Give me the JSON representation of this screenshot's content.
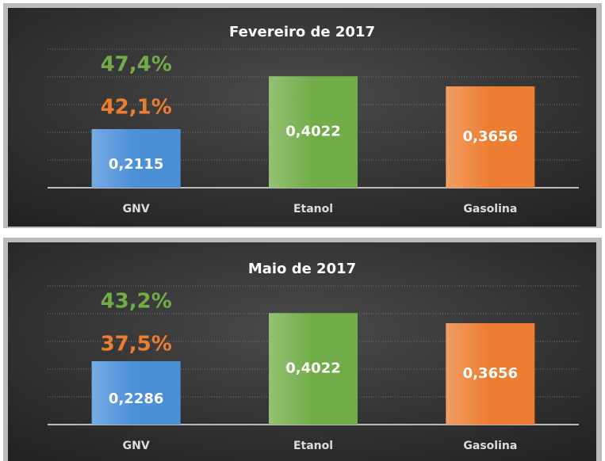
{
  "chart_data": [
    {
      "type": "bar",
      "title": "Fevereiro de 2017",
      "categories": [
        "GNV",
        "Etanol",
        "Gasolina"
      ],
      "values": [
        0.2115,
        0.4022,
        0.3656
      ],
      "value_labels": [
        "0,2115",
        "0,4022",
        "0,3656"
      ],
      "colors": [
        "#4a8fd8",
        "#70ad47",
        "#ed7d31"
      ],
      "ylim": [
        0,
        0.5
      ],
      "yticks": [
        0,
        0.1,
        0.2,
        0.3,
        0.4,
        0.5
      ],
      "grid": true,
      "annotations": [
        {
          "text": "47,4%",
          "color": "#70ad47"
        },
        {
          "text": "42,1%",
          "color": "#ed7d31"
        }
      ]
    },
    {
      "type": "bar",
      "title": "Maio de 2017",
      "categories": [
        "GNV",
        "Etanol",
        "Gasolina"
      ],
      "values": [
        0.2286,
        0.4022,
        0.3656
      ],
      "value_labels": [
        "0,2286",
        "0,4022",
        "0,3656"
      ],
      "colors": [
        "#4a8fd8",
        "#70ad47",
        "#ed7d31"
      ],
      "ylim": [
        0,
        0.5
      ],
      "yticks": [
        0,
        0.1,
        0.2,
        0.3,
        0.4,
        0.5
      ],
      "grid": true,
      "annotations": [
        {
          "text": "43,2%",
          "color": "#70ad47"
        },
        {
          "text": "37,5%",
          "color": "#ed7d31"
        }
      ]
    }
  ]
}
